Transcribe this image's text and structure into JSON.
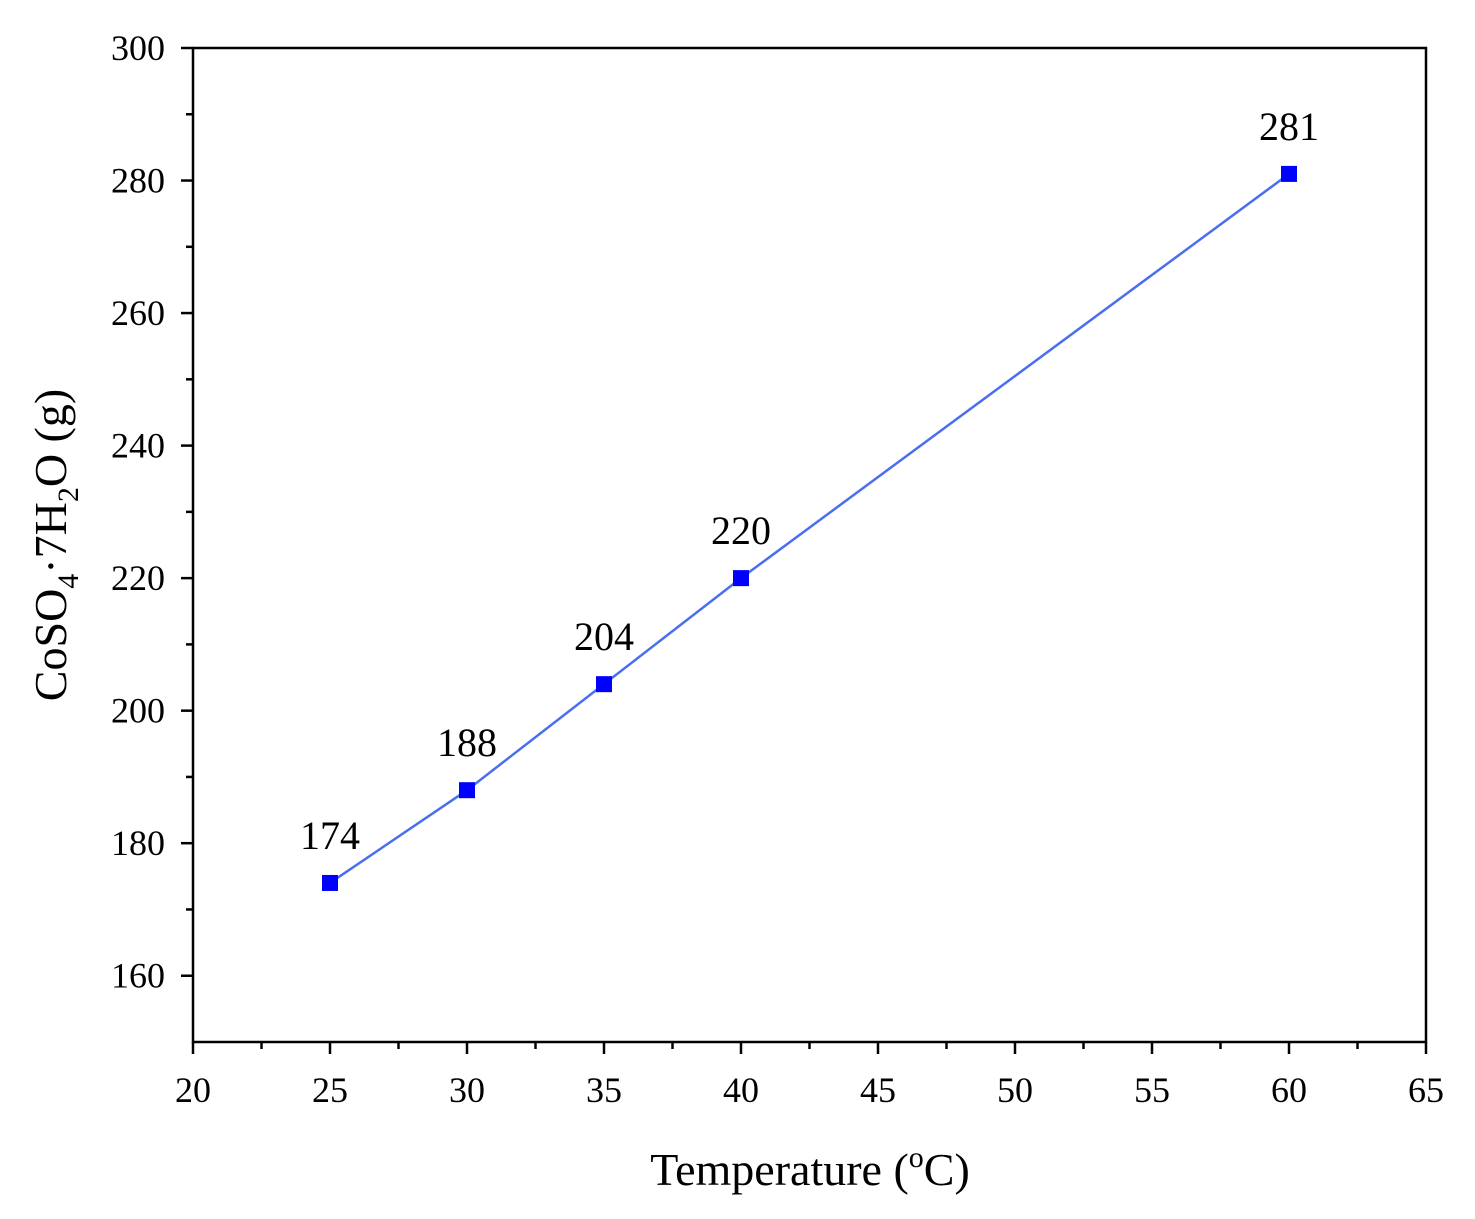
{
  "chart_data": {
    "type": "line",
    "title": "",
    "xlabel": "Temperature (oC)",
    "xlabel_parts": {
      "pre": "Temperature (",
      "sup": "o",
      "post": "C)"
    },
    "ylabel": "CoSO4·7H2O (g)",
    "ylabel_parts": {
      "a": "CoSO",
      "sub1": "4",
      "b": "·7H",
      "sub2": "2",
      "c": "O (g)"
    },
    "xlim": [
      20,
      65
    ],
    "ylim": [
      150,
      300
    ],
    "xticks": [
      20,
      25,
      30,
      35,
      40,
      45,
      50,
      55,
      60,
      65
    ],
    "yticks": [
      160,
      180,
      200,
      220,
      240,
      260,
      280,
      300
    ],
    "grid": false,
    "series": [
      {
        "name": "CoSO4·7H2O",
        "color": "#4a6ef0",
        "marker_color": "#0000ff",
        "marker": "square",
        "x": [
          25,
          30,
          35,
          40,
          60
        ],
        "y": [
          174,
          188,
          204,
          220,
          281
        ],
        "labels": [
          "174",
          "188",
          "204",
          "220",
          "281"
        ]
      }
    ]
  }
}
